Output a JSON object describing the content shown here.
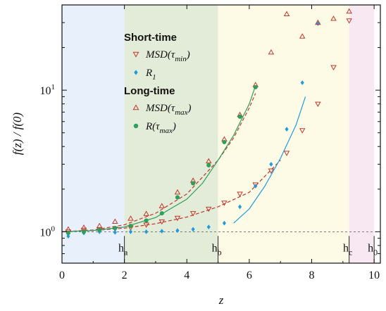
{
  "chart_data": {
    "type": "scatter",
    "xlabel": "z",
    "ylabel": "f(z) / f(0)",
    "xlim": [
      0,
      10.2
    ],
    "ylim": [
      0.6,
      40
    ],
    "y_scale": "log",
    "x_ticks": [
      0,
      2,
      4,
      6,
      8,
      10
    ],
    "x_tick_labels": [
      "0",
      "2",
      "4",
      "6",
      "8",
      "10"
    ],
    "y_ticks": [
      1,
      10
    ],
    "y_tick_labels": [
      {
        "base": "10",
        "exp": "0"
      },
      {
        "base": "10",
        "exp": "1"
      }
    ],
    "reference_line_y": 1,
    "regions": [
      {
        "from": 0,
        "to": 2,
        "color": "#e8f1fb"
      },
      {
        "from": 2,
        "to": 5,
        "color": "#e3ecd9"
      },
      {
        "from": 5,
        "to": 9.2,
        "color": "#fdfbe6"
      },
      {
        "from": 9.2,
        "to": 10,
        "color": "#f7e8f2"
      }
    ],
    "markers": [
      {
        "x": 2,
        "label": "h",
        "sub": "a"
      },
      {
        "x": 5,
        "label": "h",
        "sub": "b"
      },
      {
        "x": 9.2,
        "label": "h",
        "sub": "c"
      },
      {
        "x": 10,
        "label": "h",
        "sub": "0"
      }
    ],
    "legend_groups": [
      {
        "title": "Short-time",
        "entries": [
          {
            "marker": "triangle-down",
            "color": "#c0392b",
            "base": "MSD(τ",
            "sub": "min",
            "tail": ")"
          },
          {
            "marker": "diamond",
            "color": "#1e9be0",
            "base": "R",
            "sub": "1",
            "tail": ""
          }
        ]
      },
      {
        "title": "Long-time",
        "entries": [
          {
            "marker": "triangle-up",
            "color": "#c0392b",
            "base": "MSD(τ",
            "sub": "max",
            "tail": ")"
          },
          {
            "marker": "circle",
            "color": "#2e9e5b",
            "base": "R(τ",
            "sub": "max",
            "tail": ")"
          }
        ]
      }
    ],
    "series": [
      {
        "marker": "triangle-down",
        "color": "#c0392b",
        "x": [
          0.2,
          0.7,
          1.2,
          1.7,
          2.2,
          2.7,
          3.2,
          3.7,
          4.2,
          4.7,
          5.2,
          5.7,
          6.2,
          6.7,
          7.2,
          7.7,
          8.2,
          8.7,
          9.2
        ],
        "y": [
          1.0,
          1.03,
          1.04,
          1.05,
          1.07,
          1.12,
          1.18,
          1.25,
          1.35,
          1.45,
          1.6,
          1.85,
          2.15,
          2.7,
          3.6,
          5.2,
          8.0,
          14.5,
          31.0
        ]
      },
      {
        "marker": "diamond",
        "color": "#1e9be0",
        "x": [
          0.2,
          0.7,
          1.2,
          1.7,
          2.2,
          2.7,
          3.2,
          3.7,
          4.2,
          4.7,
          5.2,
          5.7,
          6.2,
          6.7,
          7.2,
          7.7,
          8.2
        ],
        "y": [
          0.93,
          0.98,
          1.0,
          0.99,
          1.0,
          1.0,
          1.01,
          1.02,
          1.04,
          1.08,
          1.15,
          1.5,
          2.1,
          3.0,
          5.3,
          11.3,
          29.5
        ]
      },
      {
        "marker": "triangle-up",
        "color": "#c0392b",
        "x": [
          0.2,
          0.7,
          1.2,
          1.7,
          2.2,
          2.7,
          3.2,
          3.7,
          4.2,
          4.7,
          5.2,
          5.7,
          6.2,
          6.7,
          7.2,
          7.7,
          8.2,
          8.7,
          9.2
        ],
        "y": [
          1.04,
          1.07,
          1.1,
          1.18,
          1.24,
          1.34,
          1.52,
          1.9,
          2.3,
          3.15,
          4.5,
          6.7,
          10.9,
          18.5,
          34.5,
          24.0,
          30.0,
          32.0,
          36.0
        ]
      },
      {
        "marker": "circle",
        "color": "#2e9e5b",
        "x": [
          0.2,
          0.7,
          1.2,
          1.7,
          2.2,
          2.7,
          3.2,
          3.7,
          4.2,
          4.7,
          5.2,
          5.7,
          6.2
        ],
        "y": [
          0.98,
          1.0,
          1.03,
          1.06,
          1.1,
          1.2,
          1.35,
          1.75,
          2.2,
          2.95,
          4.3,
          6.5,
          10.5
        ]
      }
    ],
    "fit_curves": [
      {
        "style": "dashed",
        "color": "#c0392b",
        "x": [
          0,
          1,
          2,
          3,
          4,
          5,
          6,
          7
        ],
        "y": [
          1.0,
          1.02,
          1.06,
          1.14,
          1.27,
          1.5,
          1.9,
          3.2
        ]
      },
      {
        "style": "solid",
        "color": "#1e9be0",
        "x": [
          5.5,
          6,
          6.5,
          7,
          7.5,
          7.8
        ],
        "y": [
          1.15,
          1.45,
          2.1,
          3.3,
          5.7,
          9.0
        ]
      },
      {
        "style": "dashed",
        "color": "#c0392b",
        "x": [
          0,
          1,
          2,
          3,
          4,
          5,
          5.5,
          6,
          6.2
        ],
        "y": [
          1.0,
          1.03,
          1.12,
          1.35,
          1.85,
          3.2,
          4.6,
          7.5,
          9.5
        ]
      },
      {
        "style": "solid",
        "color": "#2e9e5b",
        "x": [
          0,
          1,
          2,
          3,
          4,
          4.5,
          5,
          5.5,
          6,
          6.2
        ],
        "y": [
          1.0,
          1.02,
          1.08,
          1.26,
          1.7,
          2.2,
          3.2,
          4.8,
          8.0,
          10.7
        ]
      }
    ]
  }
}
